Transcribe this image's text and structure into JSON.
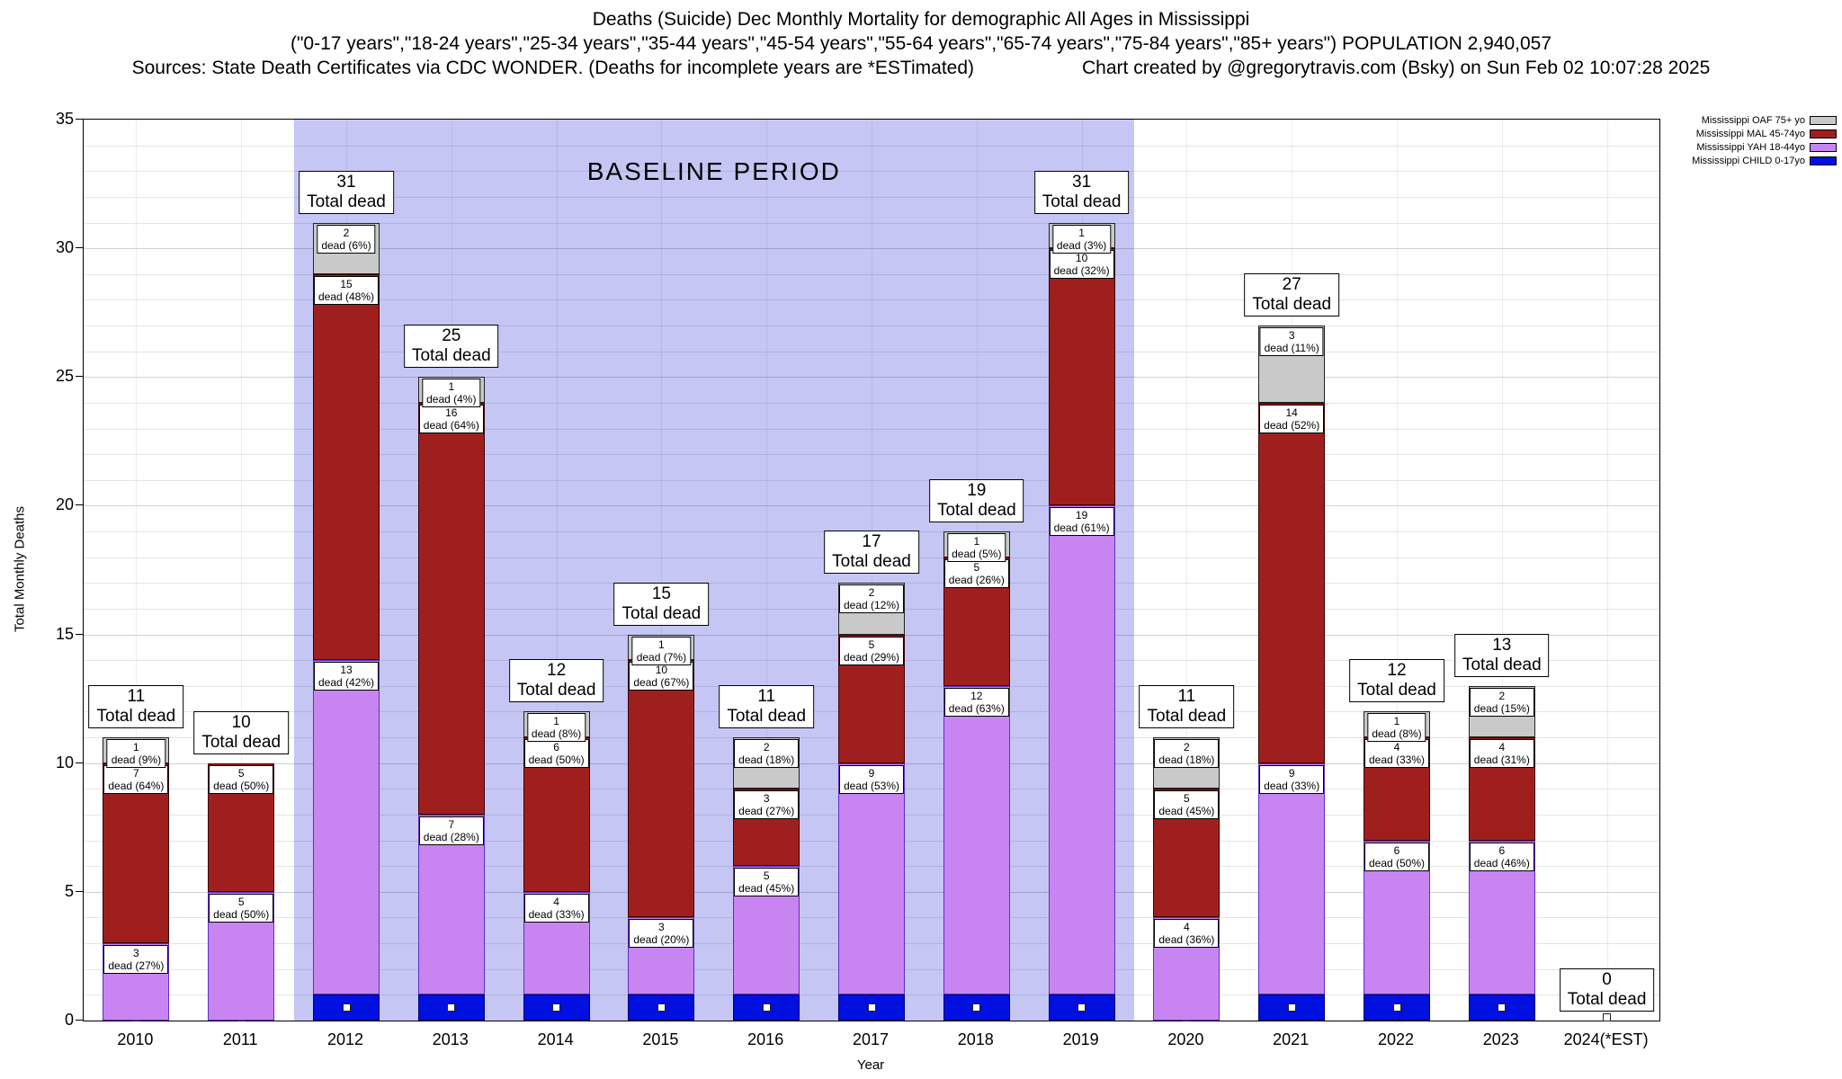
{
  "title": {
    "line1": "Deaths (Suicide) Dec Monthly Mortality for demographic All Ages in Mississippi",
    "line2": "(\"0-17 years\",\"18-24 years\",\"25-34 years\",\"35-44 years\",\"45-54 years\",\"55-64 years\",\"65-74 years\",\"75-84 years\",\"85+ years\") POPULATION 2,940,057",
    "line3_left": "Sources: State Death Certificates via CDC WONDER. (Deaths for incomplete years are *ESTimated)",
    "line3_right": "Chart created by @gregorytravis.com (Bsky) on Sun Feb 02 10:07:28 2025"
  },
  "chart_data": {
    "type": "bar",
    "stacked": true,
    "title": "Deaths (Suicide) Dec Monthly Mortality for demographic All Ages in Mississippi",
    "xlabel": "Year",
    "ylabel": "Total Monthly Deaths",
    "ylim": [
      0,
      35
    ],
    "ytick_step": 5,
    "grid": true,
    "categories": [
      "2010",
      "2011",
      "2012",
      "2013",
      "2014",
      "2015",
      "2016",
      "2017",
      "2018",
      "2019",
      "2020",
      "2021",
      "2022",
      "2023",
      "2024(*EST)"
    ],
    "totals": [
      11,
      10,
      31,
      25,
      12,
      15,
      11,
      17,
      19,
      31,
      11,
      27,
      12,
      13,
      0
    ],
    "total_label_suffix": "Total dead",
    "segment_label_word": "dead",
    "baseline": {
      "label": "BASELINE PERIOD",
      "start_index": 2,
      "end_index": 9,
      "color": "#c6c6f5"
    },
    "series": [
      {
        "name": "Mississippi CHILD 0-17yo",
        "color": "#0010e0",
        "border": "#000070",
        "marker": "white-square",
        "values": [
          0,
          0,
          1,
          1,
          1,
          1,
          1,
          1,
          1,
          1,
          0,
          1,
          1,
          1,
          0
        ],
        "pct": null
      },
      {
        "name": "Mississippi YAH 18-44yo",
        "color": "#c885f2",
        "border": "#5a2fc8",
        "marker": null,
        "values": [
          3,
          5,
          13,
          7,
          4,
          3,
          5,
          9,
          12,
          19,
          4,
          9,
          6,
          6,
          0
        ],
        "pct": [
          "27%",
          "50%",
          "42%",
          "28%",
          "33%",
          "20%",
          "45%",
          "53%",
          "63%",
          "61%",
          "36%",
          "33%",
          "50%",
          "46%",
          null
        ]
      },
      {
        "name": "Mississippi MAL 45-74yo",
        "color": "#9f1f1f",
        "border": "#3a0000",
        "marker": null,
        "values": [
          7,
          5,
          15,
          16,
          6,
          10,
          3,
          5,
          5,
          10,
          5,
          14,
          4,
          4,
          0
        ],
        "pct": [
          "64%",
          "50%",
          "48%",
          "64%",
          "50%",
          "67%",
          "27%",
          "29%",
          "26%",
          "32%",
          "45%",
          "52%",
          "33%",
          "31%",
          null
        ]
      },
      {
        "name": "Mississippi OAF 75+ yo",
        "color": "#c9c9c9",
        "border": "#222222",
        "marker": null,
        "values": [
          1,
          0,
          2,
          1,
          1,
          1,
          2,
          2,
          1,
          1,
          2,
          3,
          1,
          2,
          0
        ],
        "pct": [
          "9%",
          null,
          "6%",
          "4%",
          "8%",
          "7%",
          "18%",
          "12%",
          "5%",
          "3%",
          "18%",
          "11%",
          "8%",
          "15%",
          null
        ]
      }
    ]
  }
}
